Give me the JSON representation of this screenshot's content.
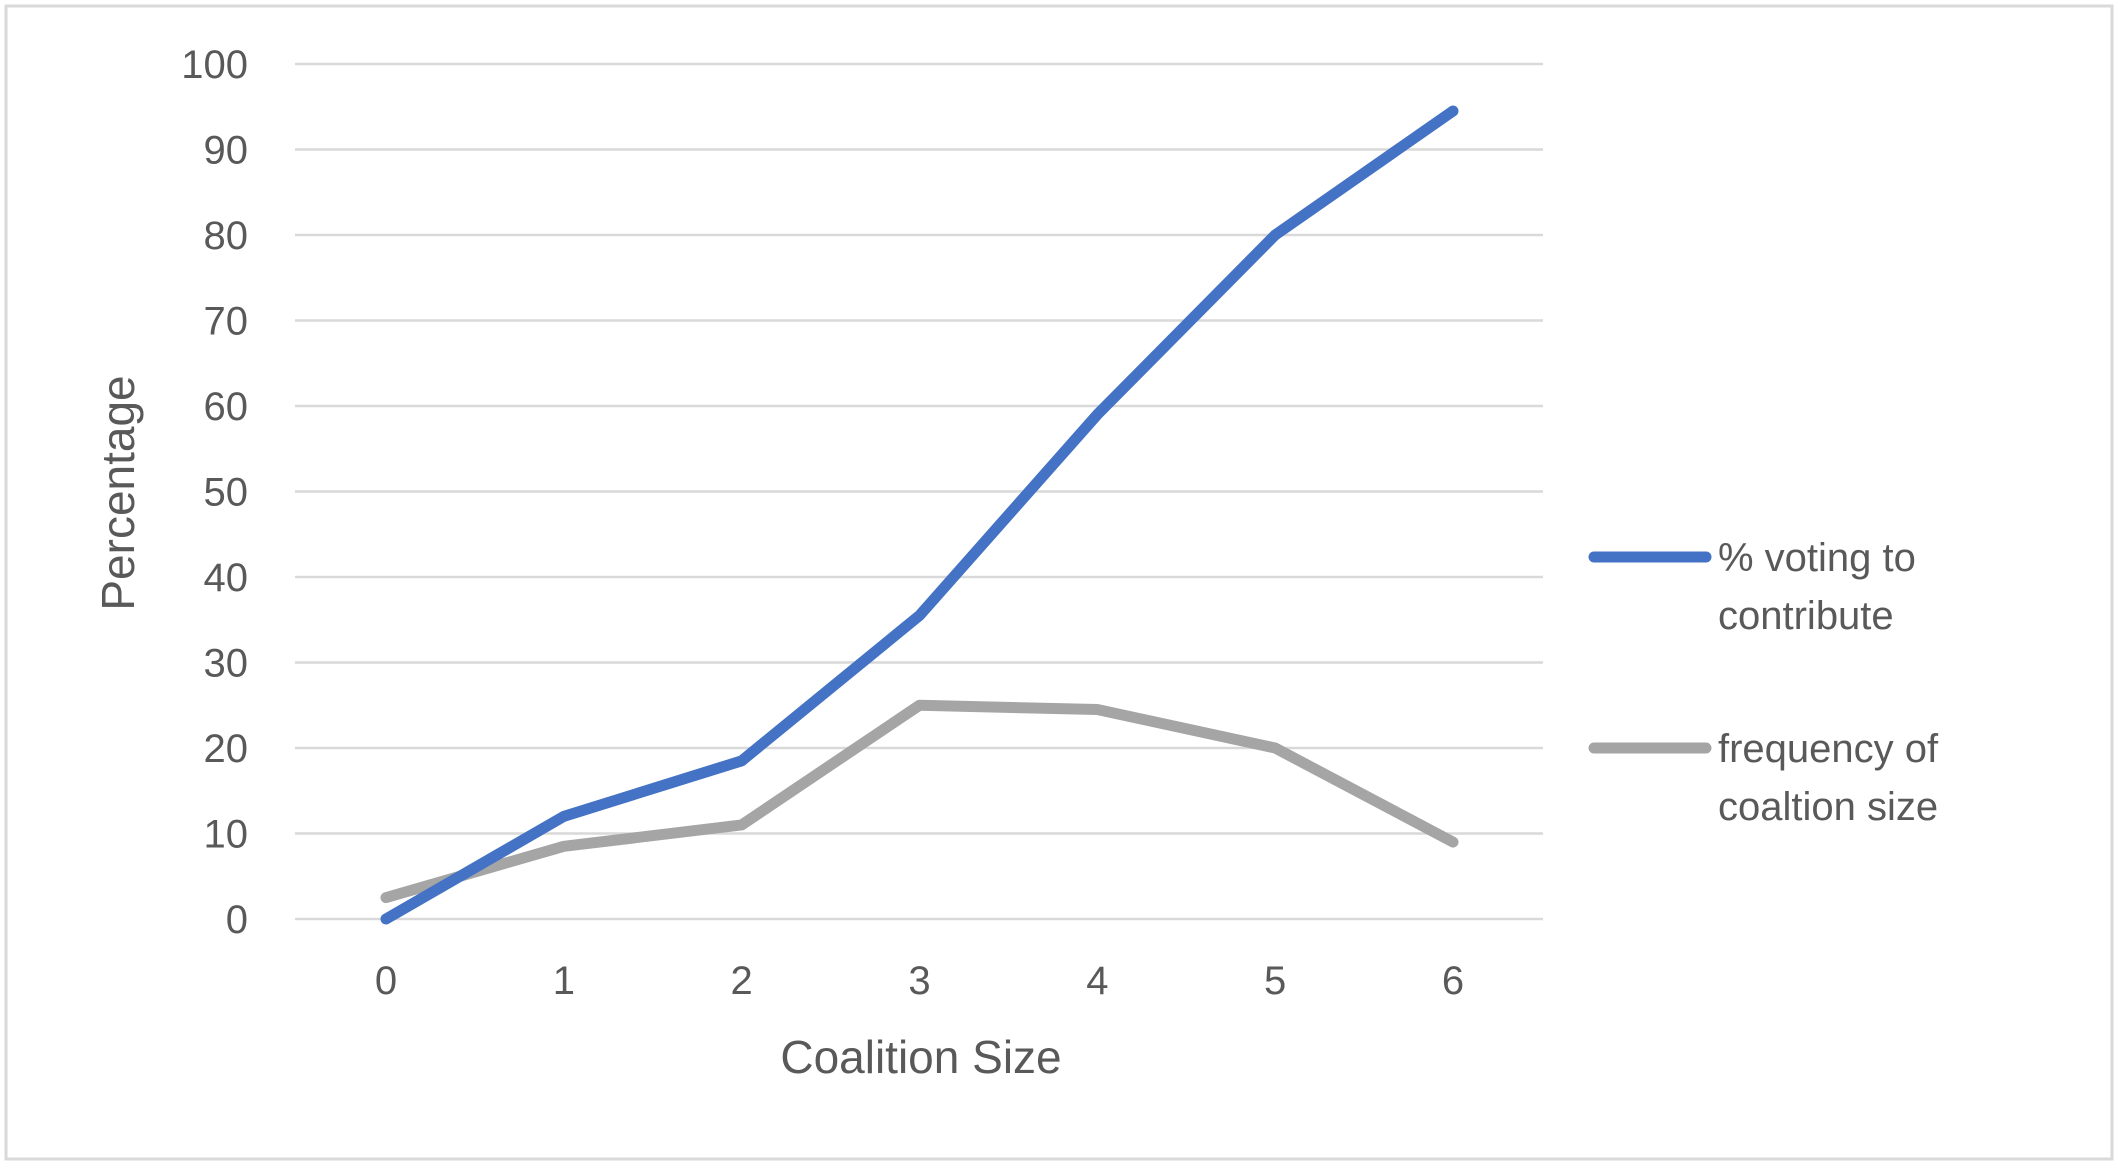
{
  "chart_data": {
    "type": "line",
    "title": "",
    "xlabel": "Coalition Size",
    "ylabel": "Percentage",
    "x": [
      0,
      1,
      2,
      3,
      4,
      5,
      6
    ],
    "ylim": [
      0,
      100
    ],
    "yticks": [
      0,
      10,
      20,
      30,
      40,
      50,
      60,
      70,
      80,
      90,
      100
    ],
    "grid": "horizontal",
    "legend_position": "right",
    "series": [
      {
        "name": "% voting to contribute",
        "name_lines": [
          "% voting to",
          "contribute"
        ],
        "color": "#4472c4",
        "values": [
          0,
          12,
          18.5,
          35.5,
          59,
          80,
          94.5
        ]
      },
      {
        "name": "frequency of coaltion size",
        "name_lines": [
          "frequency of",
          "coaltion size"
        ],
        "color": "#a5a5a5",
        "values": [
          2.5,
          8.5,
          11,
          25,
          24.5,
          20,
          9
        ]
      }
    ]
  }
}
